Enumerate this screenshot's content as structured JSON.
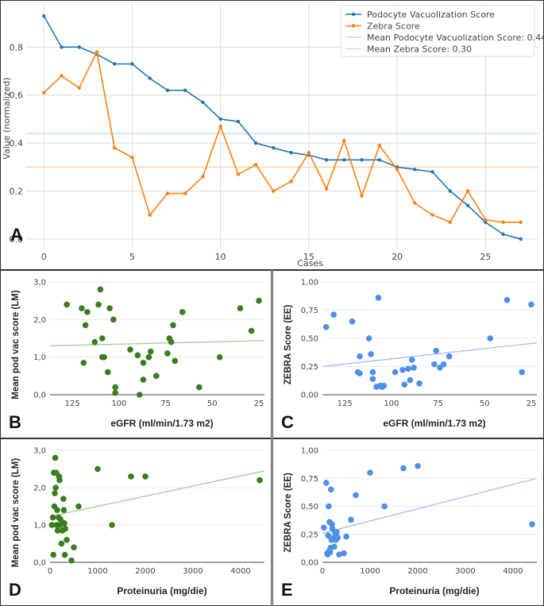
{
  "chart_data": [
    {
      "id": "A",
      "type": "line",
      "panel_letter": "A",
      "xlabel": "Cases",
      "ylabel": "Value (normalized)",
      "xlim": [
        -1,
        28
      ],
      "ylim": [
        -0.04,
        0.98
      ],
      "x_ticks": [
        0,
        5,
        10,
        15,
        20,
        25
      ],
      "y_ticks": [
        0.0,
        0.2,
        0.4,
        0.6,
        0.8
      ],
      "y_tick_labels": [
        "0.0",
        "0.2",
        "0.4",
        "0.6",
        "0.8"
      ],
      "series": [
        {
          "name": "Podocyte Vacuolization Score",
          "color": "#1f77b4",
          "x": [
            0,
            1,
            2,
            3,
            4,
            5,
            6,
            7,
            8,
            9,
            10,
            11,
            12,
            13,
            14,
            15,
            16,
            17,
            18,
            19,
            20,
            21,
            22,
            23,
            24,
            25,
            26,
            27
          ],
          "values": [
            0.93,
            0.8,
            0.8,
            0.77,
            0.73,
            0.73,
            0.67,
            0.62,
            0.62,
            0.57,
            0.5,
            0.49,
            0.4,
            0.38,
            0.36,
            0.35,
            0.33,
            0.33,
            0.33,
            0.33,
            0.3,
            0.29,
            0.28,
            0.2,
            0.14,
            0.07,
            0.02,
            0.0
          ]
        },
        {
          "name": "Zebra Score",
          "color": "#ff7f0e",
          "x": [
            0,
            1,
            2,
            3,
            4,
            5,
            6,
            7,
            8,
            9,
            10,
            11,
            12,
            13,
            14,
            15,
            16,
            17,
            18,
            19,
            20,
            21,
            22,
            23,
            24,
            25,
            26,
            27
          ],
          "values": [
            0.61,
            0.68,
            0.63,
            0.78,
            0.38,
            0.34,
            0.1,
            0.19,
            0.19,
            0.26,
            0.47,
            0.27,
            0.31,
            0.2,
            0.24,
            0.36,
            0.21,
            0.41,
            0.18,
            0.39,
            0.29,
            0.15,
            0.1,
            0.07,
            0.2,
            0.08,
            0.07,
            0.07
          ]
        }
      ],
      "reference_lines": [
        {
          "name": "Mean Podocyte Vacuolization Score: 0.44",
          "value": 0.44,
          "color": "#a8d8e8"
        },
        {
          "name": "Mean Zebra Score: 0.30",
          "value": 0.3,
          "color": "#f7c99a"
        }
      ],
      "legend": "top-right"
    },
    {
      "id": "B",
      "type": "scatter",
      "panel_letter": "B",
      "xlabel": "eGFR (ml/min/1.73 m2)",
      "ylabel": "Mean pod vac score (LM)",
      "xlim": [
        137,
        22
      ],
      "ylim": [
        0,
        3
      ],
      "x_ticks": [
        125,
        100,
        75,
        50,
        25
      ],
      "x_tick_labels": [
        "125",
        "100",
        "75",
        "50",
        "25"
      ],
      "y_ticks": [
        0,
        1,
        2,
        3
      ],
      "y_tick_labels": [
        "0,0",
        "1,0",
        "2,0",
        "3,0"
      ],
      "color": "#3a7d1e",
      "trend": {
        "x": [
          137,
          22
        ],
        "y": [
          1.3,
          1.44
        ],
        "color": "#a8cf9a"
      },
      "points": [
        [
          128,
          2.4
        ],
        [
          120,
          2.3
        ],
        [
          118,
          1.85
        ],
        [
          119,
          0.85
        ],
        [
          117,
          2.2
        ],
        [
          113,
          1.4
        ],
        [
          110,
          2.8
        ],
        [
          111,
          2.4
        ],
        [
          109,
          1.5
        ],
        [
          109,
          1.0
        ],
        [
          108,
          1.0
        ],
        [
          106,
          0.6
        ],
        [
          105,
          2.3
        ],
        [
          103,
          2.0
        ],
        [
          102,
          0.2
        ],
        [
          102,
          0.05
        ],
        [
          94,
          1.2
        ],
        [
          90,
          1.05
        ],
        [
          89,
          0.0
        ],
        [
          87,
          0.4
        ],
        [
          87,
          0.85
        ],
        [
          84,
          1.0
        ],
        [
          83,
          1.15
        ],
        [
          80,
          0.5
        ],
        [
          74,
          1.1
        ],
        [
          73,
          1.5
        ],
        [
          72,
          1.4
        ],
        [
          71,
          1.85
        ],
        [
          70,
          0.9
        ],
        [
          66,
          2.2
        ],
        [
          57,
          0.2
        ],
        [
          46,
          1.0
        ],
        [
          35,
          2.3
        ],
        [
          29,
          1.7
        ],
        [
          25,
          2.5
        ]
      ]
    },
    {
      "id": "C",
      "type": "scatter",
      "panel_letter": "C",
      "xlabel": "eGFR (ml/min/1.73 m2)",
      "ylabel": "ZEBRA Score (EE)",
      "xlim": [
        137,
        22
      ],
      "ylim": [
        0,
        1
      ],
      "x_ticks": [
        125,
        100,
        75,
        50,
        25
      ],
      "x_tick_labels": [
        "125",
        "100",
        "75",
        "50",
        "25"
      ],
      "y_ticks": [
        0,
        0.25,
        0.5,
        0.75,
        1
      ],
      "y_tick_labels": [
        "0,00",
        "0,25",
        "0,50",
        "0,75",
        "1,00"
      ],
      "color": "#4f8fe8",
      "trend": {
        "x": [
          137,
          22
        ],
        "y": [
          0.25,
          0.46
        ],
        "color": "#a6c6ee"
      },
      "points": [
        [
          135,
          0.6
        ],
        [
          131,
          0.71
        ],
        [
          121,
          0.65
        ],
        [
          118,
          0.2
        ],
        [
          117,
          0.19
        ],
        [
          117,
          0.34
        ],
        [
          112,
          0.5
        ],
        [
          111,
          0.36
        ],
        [
          110,
          0.14
        ],
        [
          110,
          0.2
        ],
        [
          108,
          0.07
        ],
        [
          107,
          0.86
        ],
        [
          106,
          0.08
        ],
        [
          105,
          0.07
        ],
        [
          104,
          0.08
        ],
        [
          98,
          0.2
        ],
        [
          94,
          0.22
        ],
        [
          93,
          0.09
        ],
        [
          91,
          0.23
        ],
        [
          90,
          0.13
        ],
        [
          89,
          0.31
        ],
        [
          88,
          0.24
        ],
        [
          85,
          0.1
        ],
        [
          77,
          0.27
        ],
        [
          76,
          0.39
        ],
        [
          74,
          0.24
        ],
        [
          72,
          0.27
        ],
        [
          69,
          0.34
        ],
        [
          47,
          0.5
        ],
        [
          38,
          0.84
        ],
        [
          30,
          0.2
        ],
        [
          25,
          0.8
        ]
      ]
    },
    {
      "id": "D",
      "type": "scatter",
      "panel_letter": "D",
      "xlabel": "Proteinuria (mg/die)",
      "ylabel": "Mean pod vac score (LM)",
      "xlim": [
        0,
        4500
      ],
      "ylim": [
        0,
        3
      ],
      "x_ticks": [
        0,
        1000,
        2000,
        3000,
        4000
      ],
      "x_tick_labels": [
        "0",
        "1000",
        "2000",
        "3000",
        "4000"
      ],
      "y_ticks": [
        0,
        1,
        2,
        3
      ],
      "y_tick_labels": [
        "0,0",
        "1,0",
        "2,0",
        "3,0"
      ],
      "color": "#3a7d1e",
      "trend": {
        "x": [
          0,
          4500
        ],
        "y": [
          1.23,
          2.45
        ],
        "color": "#a8cf9a"
      },
      "points": [
        [
          40,
          1.0
        ],
        [
          60,
          1.2
        ],
        [
          70,
          0.2
        ],
        [
          80,
          2.4
        ],
        [
          90,
          1.5
        ],
        [
          100,
          1.85
        ],
        [
          110,
          2.8
        ],
        [
          120,
          2.0
        ],
        [
          130,
          2.4
        ],
        [
          140,
          1.0
        ],
        [
          150,
          1.4
        ],
        [
          160,
          0.85
        ],
        [
          180,
          1.2
        ],
        [
          190,
          2.3
        ],
        [
          200,
          2.2
        ],
        [
          210,
          1.0
        ],
        [
          220,
          1.15
        ],
        [
          240,
          0.5
        ],
        [
          260,
          0.85
        ],
        [
          280,
          1.7
        ],
        [
          290,
          1.4
        ],
        [
          300,
          1.05
        ],
        [
          310,
          0.2
        ],
        [
          320,
          0.9
        ],
        [
          350,
          0.6
        ],
        [
          450,
          0.05
        ],
        [
          500,
          0.4
        ],
        [
          600,
          1.5
        ],
        [
          1000,
          2.5
        ],
        [
          1300,
          1.0
        ],
        [
          1700,
          2.3
        ],
        [
          2000,
          2.3
        ],
        [
          4400,
          2.2
        ]
      ]
    },
    {
      "id": "E",
      "type": "scatter",
      "panel_letter": "E",
      "xlabel": "Proteinuria (mg/die)",
      "ylabel": "ZEBRA Score (EE)",
      "xlim": [
        0,
        4500
      ],
      "ylim": [
        0,
        1
      ],
      "x_ticks": [
        0,
        1000,
        2000,
        3000,
        4000
      ],
      "x_tick_labels": [
        "0",
        "1000",
        "2000",
        "3000",
        "4000"
      ],
      "y_ticks": [
        0,
        0.25,
        0.5,
        0.75,
        1
      ],
      "y_tick_labels": [
        "0,00",
        "0,25",
        "0,50",
        "0,75",
        "1,00"
      ],
      "color": "#4f8fe8",
      "trend": {
        "x": [
          0,
          4500
        ],
        "y": [
          0.26,
          0.75
        ],
        "color": "#a6c6ee"
      },
      "points": [
        [
          30,
          0.31
        ],
        [
          80,
          0.71
        ],
        [
          100,
          0.08
        ],
        [
          110,
          0.07
        ],
        [
          120,
          0.24
        ],
        [
          130,
          0.5
        ],
        [
          140,
          0.1
        ],
        [
          150,
          0.36
        ],
        [
          160,
          0.09
        ],
        [
          170,
          0.13
        ],
        [
          180,
          0.65
        ],
        [
          190,
          0.2
        ],
        [
          200,
          0.34
        ],
        [
          210,
          0.3
        ],
        [
          220,
          0.21
        ],
        [
          240,
          0.22
        ],
        [
          250,
          0.14
        ],
        [
          260,
          0.27
        ],
        [
          280,
          0.2
        ],
        [
          300,
          0.27
        ],
        [
          320,
          0.22
        ],
        [
          350,
          0.07
        ],
        [
          450,
          0.08
        ],
        [
          500,
          0.23
        ],
        [
          600,
          0.38
        ],
        [
          700,
          0.6
        ],
        [
          1000,
          0.8
        ],
        [
          1300,
          0.5
        ],
        [
          1700,
          0.84
        ],
        [
          2000,
          0.86
        ],
        [
          4400,
          0.34
        ]
      ]
    }
  ]
}
